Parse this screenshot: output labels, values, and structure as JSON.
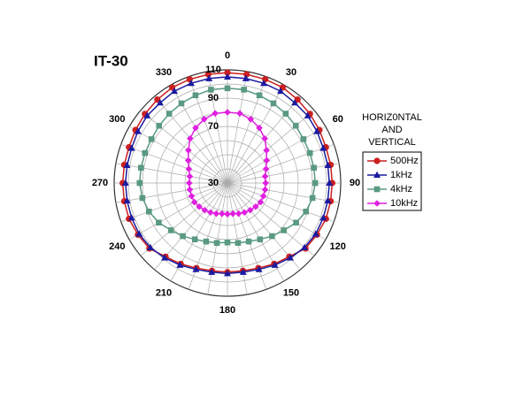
{
  "chart_data": {
    "type": "polar",
    "title": "IT-30",
    "annotation": [
      "HORIZ0NTAL",
      "AND",
      "VERTICAL"
    ],
    "x": [
      0,
      10,
      20,
      30,
      40,
      50,
      60,
      70,
      80,
      90,
      100,
      110,
      120,
      130,
      140,
      150,
      160,
      170,
      180,
      190,
      200,
      210,
      220,
      230,
      240,
      250,
      260,
      270,
      280,
      290,
      300,
      310,
      320,
      330,
      340,
      350
    ],
    "xticks": [
      0,
      30,
      60,
      90,
      120,
      150,
      180,
      210,
      240,
      270,
      300,
      330
    ],
    "rlim": [
      30,
      110
    ],
    "rticks": [
      30,
      70,
      90,
      110
    ],
    "rgrid": [
      40,
      50,
      60,
      70,
      80,
      90,
      100,
      110
    ],
    "series": [
      {
        "name": "500Hz",
        "color": "#cc1f1f",
        "marker": "circle",
        "values": [
          108,
          108,
          108,
          108,
          107,
          106,
          105,
          104,
          104,
          104,
          104,
          104,
          103,
          102,
          98,
          96,
          94,
          93,
          93,
          93,
          94,
          96,
          98,
          102,
          103,
          104,
          104,
          104,
          104,
          104,
          105,
          106,
          107,
          108,
          108,
          108
        ]
      },
      {
        "name": "1kHz",
        "color": "#1a1aa0",
        "marker": "triangle",
        "values": [
          105,
          105,
          105,
          105,
          104,
          104,
          103,
          102,
          102,
          102,
          102,
          102,
          102,
          101,
          99,
          97,
          95,
          94,
          94,
          94,
          95,
          97,
          99,
          101,
          102,
          102,
          102,
          102,
          102,
          102,
          103,
          104,
          104,
          105,
          105,
          105
        ]
      },
      {
        "name": "4kHz",
        "color": "#5a9a80",
        "marker": "square",
        "values": [
          97,
          97,
          96,
          95,
          94,
          93,
          92,
          92,
          92,
          92,
          91,
          89,
          86,
          82,
          79,
          76,
          74,
          73,
          72,
          73,
          74,
          76,
          79,
          82,
          86,
          89,
          91,
          92,
          92,
          92,
          92,
          93,
          94,
          95,
          96,
          97
        ]
      },
      {
        "name": "10kHz",
        "color": "#e020e0",
        "marker": "diamond",
        "values": [
          80,
          80,
          78,
          75,
          71,
          66,
          62,
          59,
          57,
          57,
          57,
          57,
          57,
          56,
          55,
          54,
          53,
          52,
          52,
          52,
          53,
          54,
          55,
          56,
          57,
          57,
          57,
          57,
          57,
          59,
          62,
          66,
          71,
          75,
          78,
          80
        ]
      }
    ]
  }
}
